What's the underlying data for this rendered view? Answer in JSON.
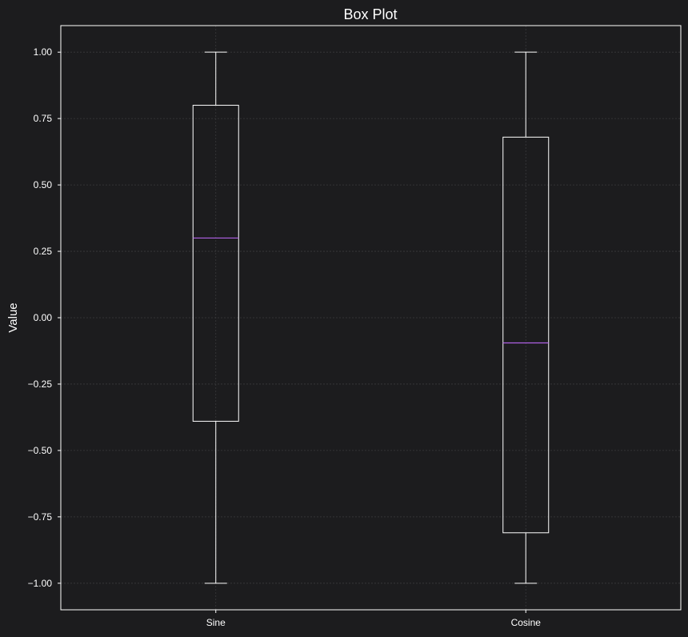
{
  "chart_data": {
    "type": "box",
    "title": "Box Plot",
    "xlabel": "",
    "ylabel": "Value",
    "ylim": [
      -1.1,
      1.1
    ],
    "yticks": [
      1.0,
      0.75,
      0.5,
      0.25,
      0.0,
      -0.25,
      -0.5,
      -0.75,
      -1.0
    ],
    "ytick_labels": [
      "1.00",
      "0.75",
      "0.50",
      "0.25",
      "0.00",
      "−0.25",
      "−0.50",
      "−0.75",
      "−1.00"
    ],
    "categories": [
      "Sine",
      "Cosine"
    ],
    "grid": true,
    "boxes": [
      {
        "name": "Sine",
        "whisker_low": -1.0,
        "q1": -0.39,
        "median": 0.3,
        "q3": 0.8,
        "whisker_high": 1.0
      },
      {
        "name": "Cosine",
        "whisker_low": -1.0,
        "q1": -0.81,
        "median": -0.095,
        "q3": 0.68,
        "whisker_high": 1.0
      }
    ],
    "colors": {
      "background": "#1c1c1e",
      "axes": "#ffffff",
      "box": "#ffffff",
      "median": "#b061e6",
      "grid": "#3a3a3c"
    }
  }
}
